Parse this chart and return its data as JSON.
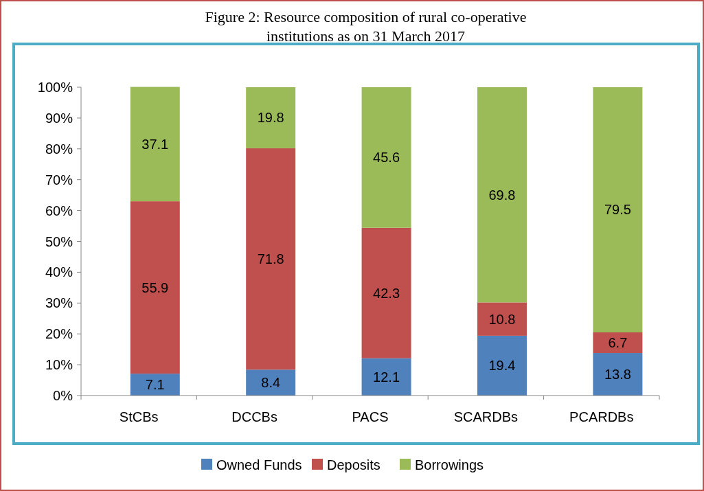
{
  "chart_data": {
    "type": "bar",
    "stacked": true,
    "title": "Figure 2: Resource composition of rural co-operative institutions as on 31 March 2017",
    "categories": [
      "StCBs",
      "DCCBs",
      "PACS",
      "SCARDBs",
      "PCARDBs"
    ],
    "series": [
      {
        "name": "Owned Funds",
        "color": "#4f81bd",
        "values": [
          7.1,
          8.4,
          12.1,
          19.4,
          13.8
        ]
      },
      {
        "name": "Deposits",
        "color": "#c0504d",
        "values": [
          55.9,
          71.8,
          42.3,
          10.8,
          6.7
        ]
      },
      {
        "name": "Borrowings",
        "color": "#9bbb59",
        "values": [
          37.1,
          19.8,
          45.6,
          69.8,
          79.5
        ]
      }
    ],
    "ylim": [
      0,
      100
    ],
    "yticks": [
      {
        "value": 0,
        "label": "0%"
      },
      {
        "value": 10,
        "label": "10%"
      },
      {
        "value": 20,
        "label": "20%"
      },
      {
        "value": 30,
        "label": "30%"
      },
      {
        "value": 40,
        "label": "40%"
      },
      {
        "value": 50,
        "label": "50%"
      },
      {
        "value": 60,
        "label": "60%"
      },
      {
        "value": 70,
        "label": "70%"
      },
      {
        "value": 80,
        "label": "80%"
      },
      {
        "value": 90,
        "label": "90%"
      },
      {
        "value": 100,
        "label": "100%"
      }
    ],
    "data_labels": true,
    "grid": false,
    "legend": "bottom"
  }
}
